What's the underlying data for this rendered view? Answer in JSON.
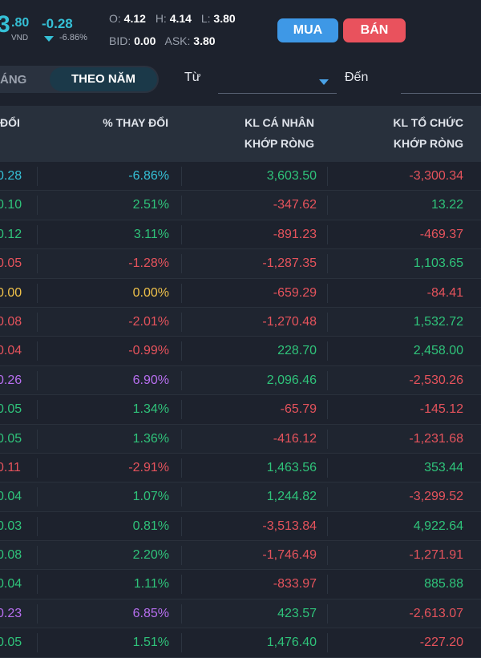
{
  "quote": {
    "price_partial": "3",
    "price_decimals": ".80",
    "currency": "VND",
    "change": "-0.28",
    "change_pct": "-6.86%",
    "open_label": "O:",
    "open": "4.12",
    "high_label": "H:",
    "high": "4.14",
    "low_label": "L:",
    "low": "3.80",
    "bid_label": "BID:",
    "bid": "0.00",
    "ask_label": "ASK:",
    "ask": "3.80",
    "buy_label": "MUA",
    "sell_label": "BÁN",
    "colors": {
      "floor": "#35c0d6",
      "buy": "#3e98e6",
      "sell": "#e9525d"
    }
  },
  "filters": {
    "month_tab": "ÁNG",
    "year_tab": "THEO NĂM",
    "from_label": "Từ",
    "from_value": "",
    "to_label": "Đến",
    "to_value": ""
  },
  "table": {
    "columns": [
      {
        "line1": "ĐỔI",
        "line2": ""
      },
      {
        "line1": "% THAY ĐỔI",
        "line2": ""
      },
      {
        "line1": "KL CÁ NHÂN",
        "line2": "KHỚP RÒNG"
      },
      {
        "line1": "KL TỔ CHỨC",
        "line2": "KHỚP RÒNG"
      }
    ],
    "rows": [
      {
        "change": "0.28",
        "pct": "-6.86%",
        "personal": "3,603.50",
        "org": "-3,300.34",
        "tone": "floor"
      },
      {
        "change": "0.10",
        "pct": "2.51%",
        "personal": "-347.62",
        "org": "13.22",
        "tone": "pos"
      },
      {
        "change": "0.12",
        "pct": "3.11%",
        "personal": "-891.23",
        "org": "-469.37",
        "tone": "pos"
      },
      {
        "change": "0.05",
        "pct": "-1.28%",
        "personal": "-1,287.35",
        "org": "1,103.65",
        "tone": "neg"
      },
      {
        "change": "0.00",
        "pct": "0.00%",
        "personal": "-659.29",
        "org": "-84.41",
        "tone": "zero"
      },
      {
        "change": "0.08",
        "pct": "-2.01%",
        "personal": "-1,270.48",
        "org": "1,532.72",
        "tone": "neg"
      },
      {
        "change": "0.04",
        "pct": "-0.99%",
        "personal": "228.70",
        "org": "2,458.00",
        "tone": "neg"
      },
      {
        "change": "0.26",
        "pct": "6.90%",
        "personal": "2,096.46",
        "org": "-2,530.26",
        "tone": "ceil"
      },
      {
        "change": "0.05",
        "pct": "1.34%",
        "personal": "-65.79",
        "org": "-145.12",
        "tone": "pos"
      },
      {
        "change": "0.05",
        "pct": "1.36%",
        "personal": "-416.12",
        "org": "-1,231.68",
        "tone": "pos"
      },
      {
        "change": "0.11",
        "pct": "-2.91%",
        "personal": "1,463.56",
        "org": "353.44",
        "tone": "neg"
      },
      {
        "change": "0.04",
        "pct": "1.07%",
        "personal": "1,244.82",
        "org": "-3,299.52",
        "tone": "pos"
      },
      {
        "change": "0.03",
        "pct": "0.81%",
        "personal": "-3,513.84",
        "org": "4,922.64",
        "tone": "pos"
      },
      {
        "change": "0.08",
        "pct": "2.20%",
        "personal": "-1,746.49",
        "org": "-1,271.91",
        "tone": "pos"
      },
      {
        "change": "0.04",
        "pct": "1.11%",
        "personal": "-833.97",
        "org": "885.88",
        "tone": "pos"
      },
      {
        "change": "0.23",
        "pct": "6.85%",
        "personal": "423.57",
        "org": "-2,613.07",
        "tone": "ceil"
      },
      {
        "change": "0.05",
        "pct": "1.51%",
        "personal": "1,476.40",
        "org": "-227.20",
        "tone": "pos"
      }
    ]
  }
}
